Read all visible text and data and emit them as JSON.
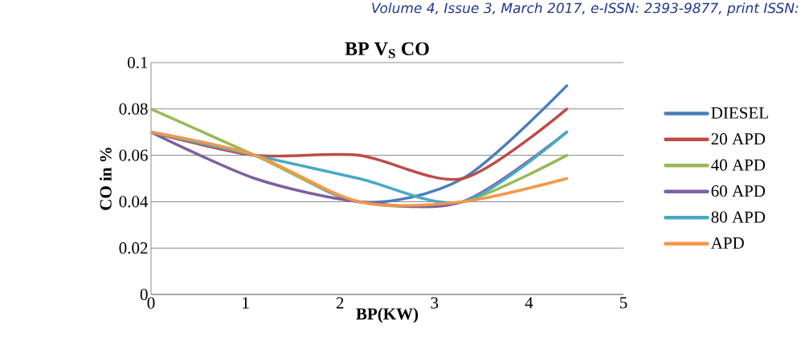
{
  "chart_data": {
    "type": "line",
    "title": "BP V$_{S}$ CO",
    "xlabel": "BP(KW)",
    "ylabel": "CO in %",
    "annotations": [
      "Volume 4, Issue 3, March 2017, e-ISSN: 2393-9877, print ISSN:"
    ],
    "x": [
      0,
      1.1,
      2.2,
      3.3,
      4.4
    ],
    "xlim": [
      0,
      5
    ],
    "xticks": [
      0,
      1,
      2,
      3,
      4,
      5
    ],
    "ylim": [
      0,
      0.1
    ],
    "yticks": [
      0,
      0.02,
      0.04,
      0.06,
      0.08,
      0.1
    ],
    "grid": "y",
    "legend": "right",
    "marker": "none",
    "line_style": "solid",
    "series": [
      {
        "name": "DIESEL",
        "color": "#4a7ebb",
        "values": [
          0.07,
          0.06,
          0.04,
          0.05,
          0.09
        ]
      },
      {
        "name": "20 APD",
        "color": "#be4b48",
        "values": [
          0.07,
          0.06,
          0.06,
          0.05,
          0.08
        ]
      },
      {
        "name": "40 APD",
        "color": "#98b954",
        "values": [
          0.08,
          0.06,
          0.04,
          0.04,
          0.06
        ]
      },
      {
        "name": "60 APD",
        "color": "#7d60a0",
        "values": [
          0.07,
          0.05,
          0.04,
          0.04,
          0.07
        ]
      },
      {
        "name": "80 APD",
        "color": "#46aac5",
        "values": [
          0.07,
          0.06,
          0.05,
          0.04,
          0.07
        ]
      },
      {
        "name": "APD",
        "color": "#f79646",
        "values": [
          0.07,
          0.06,
          0.04,
          0.04,
          0.05
        ]
      }
    ]
  }
}
